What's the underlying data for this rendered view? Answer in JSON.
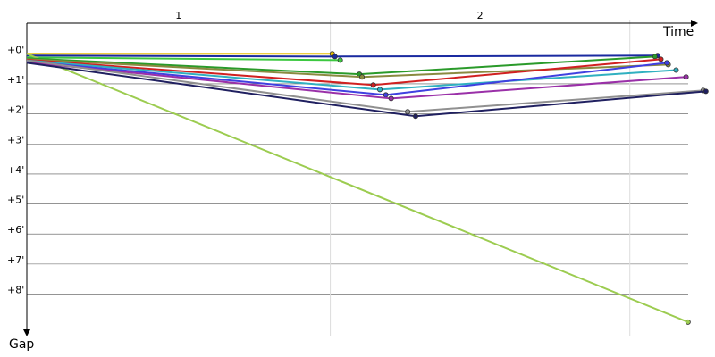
{
  "chart_data": {
    "type": "line",
    "x_label": "Time",
    "y_label": "Gap",
    "lap_labels": [
      "1",
      "2"
    ],
    "lap_ends": [
      45.9,
      91.2
    ],
    "xlim": [
      0,
      103
    ],
    "ylim": [
      -0.9,
      9.5
    ],
    "yticks": [
      {
        "value": 0,
        "label": "+0'"
      },
      {
        "value": 1,
        "label": "+1'"
      },
      {
        "value": 2,
        "label": "+2'"
      },
      {
        "value": 3,
        "label": "+3'"
      },
      {
        "value": 4,
        "label": "+4'"
      },
      {
        "value": 5,
        "label": "+5'"
      },
      {
        "value": 6,
        "label": "+6'"
      },
      {
        "value": 7,
        "label": "+7'"
      },
      {
        "value": 8,
        "label": "+8'"
      }
    ],
    "grid": true,
    "series": [
      {
        "color": "#e8c000",
        "x": [
          0,
          46.2
        ],
        "values": [
          0,
          0
        ]
      },
      {
        "color": "#1a2aa0",
        "x": [
          0,
          46.6,
          95.4
        ],
        "values": [
          0.06,
          0.09,
          0.06
        ]
      },
      {
        "color": "#3cc840",
        "x": [
          0,
          47.4
        ],
        "values": [
          0.12,
          0.21
        ]
      },
      {
        "color": "#9ccc50",
        "x": [
          0,
          100
        ],
        "values": [
          0,
          8.93
        ]
      },
      {
        "color": "#2a9a2a",
        "x": [
          0,
          50.3,
          95.0
        ],
        "values": [
          0.15,
          0.68,
          0.09
        ]
      },
      {
        "color": "#8a8a40",
        "x": [
          0,
          50.7,
          97.0
        ],
        "values": [
          0.18,
          0.77,
          0.36
        ]
      },
      {
        "color": "#d02020",
        "x": [
          0,
          52.4,
          95.9
        ],
        "values": [
          0.2,
          1.04,
          0.18
        ]
      },
      {
        "color": "#30b0c0",
        "x": [
          0,
          53.4,
          98.2
        ],
        "values": [
          0.22,
          1.19,
          0.54
        ]
      },
      {
        "color": "#4040e0",
        "x": [
          0,
          54.3,
          96.8
        ],
        "values": [
          0.25,
          1.37,
          0.3
        ]
      },
      {
        "color": "#9a30a8",
        "x": [
          0,
          55.1,
          99.7
        ],
        "values": [
          0.28,
          1.49,
          0.77
        ]
      },
      {
        "color": "#909090",
        "x": [
          0,
          57.6,
          102.3
        ],
        "values": [
          0.22,
          1.93,
          1.22
        ]
      },
      {
        "color": "#202060",
        "x": [
          0,
          58.8,
          102.7
        ],
        "values": [
          0.3,
          2.08,
          1.25
        ]
      }
    ]
  }
}
